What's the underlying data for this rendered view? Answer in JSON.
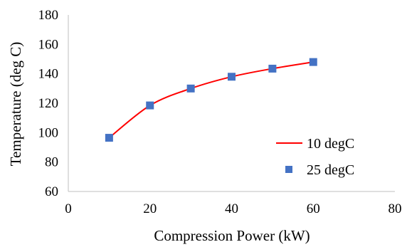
{
  "chart_data": {
    "type": "scatter",
    "title": "",
    "xlabel": "Compression Power (kW)",
    "ylabel": "Temperature (deg C)",
    "xlim": [
      0,
      80
    ],
    "ylim": [
      60,
      180
    ],
    "xticks": [
      0,
      20,
      40,
      60,
      80
    ],
    "yticks": [
      60,
      80,
      100,
      120,
      140,
      160,
      180
    ],
    "grid": false,
    "legend_position": "bottom-right",
    "series": [
      {
        "name": "10 degC",
        "kind": "line",
        "color": "#ff0000",
        "x": [
          10,
          20,
          30,
          40,
          50,
          60
        ],
        "y": [
          96.5,
          118.5,
          130,
          138,
          143.5,
          148
        ]
      },
      {
        "name": "25 degC",
        "kind": "marker",
        "marker": "square",
        "color": "#4472c4",
        "x": [
          10,
          20,
          30,
          40,
          50,
          60
        ],
        "y": [
          96.5,
          118.5,
          130,
          138,
          143.5,
          148
        ]
      }
    ]
  }
}
